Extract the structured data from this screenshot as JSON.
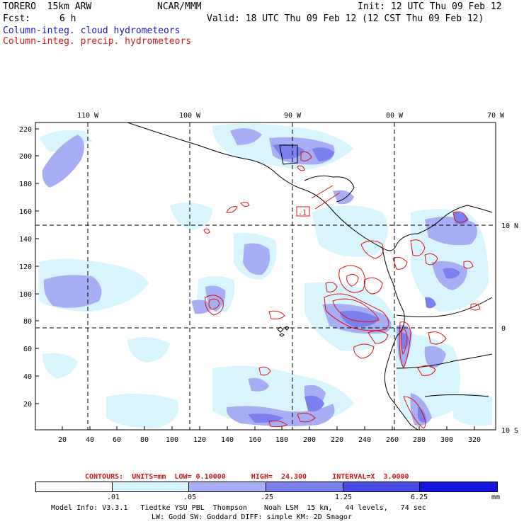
{
  "header": {
    "model": "TORERO  15km ARW",
    "center": "NCAR/MMM",
    "init": "Init: 12 UTC Thu 09 Feb 12",
    "fcst_label": "Fcst:",
    "fcst_value": "6 h",
    "valid": "Valid: 18 UTC Thu 09 Feb 12 (12 CST Thu 09 Feb 12)",
    "field_shaded": "Column-integ. cloud hydrometeors",
    "field_contour": "Column-integ. precip. hydrometeors"
  },
  "map": {
    "top_lon_labels": [
      "110 W",
      "100 W",
      "90 W",
      "80 W",
      "70 W"
    ],
    "left_y_ticks": [
      "220",
      "200",
      "180",
      "160",
      "140",
      "120",
      "100",
      "80",
      "60",
      "40",
      "20"
    ],
    "bottom_x_ticks": [
      "20",
      "40",
      "60",
      "80",
      "100",
      "120",
      "140",
      "160",
      "180",
      "200",
      "220",
      "240",
      "260",
      "280",
      "300",
      "320"
    ],
    "right_lat_labels": [
      "10 N",
      "0",
      "10 S"
    ],
    "contour_label": ".1"
  },
  "footer": {
    "contours_line": "CONTOURS:  UNITS=mm  LOW= 0.10000      HIGH=  24.300      INTERVAL=X  3.0000",
    "colorbar_labels": [
      ".01",
      ".05",
      ".25",
      "1.25",
      "6.25"
    ],
    "colorbar_units": "mm",
    "colorbar_colors": [
      "#ffffff",
      "#d8f4fd",
      "#a8aef4",
      "#7c80ee",
      "#4a4ae8",
      "#1414e0"
    ],
    "model_info_1": "Model Info: V3.3.1   Tiedtke YSU PBL  Thompson    Noah LSM  15 km,   44 levels,   74 sec",
    "model_info_2": "LW: Godd SW: Goddard DIFF: simple KM: 2D Smagor"
  }
}
